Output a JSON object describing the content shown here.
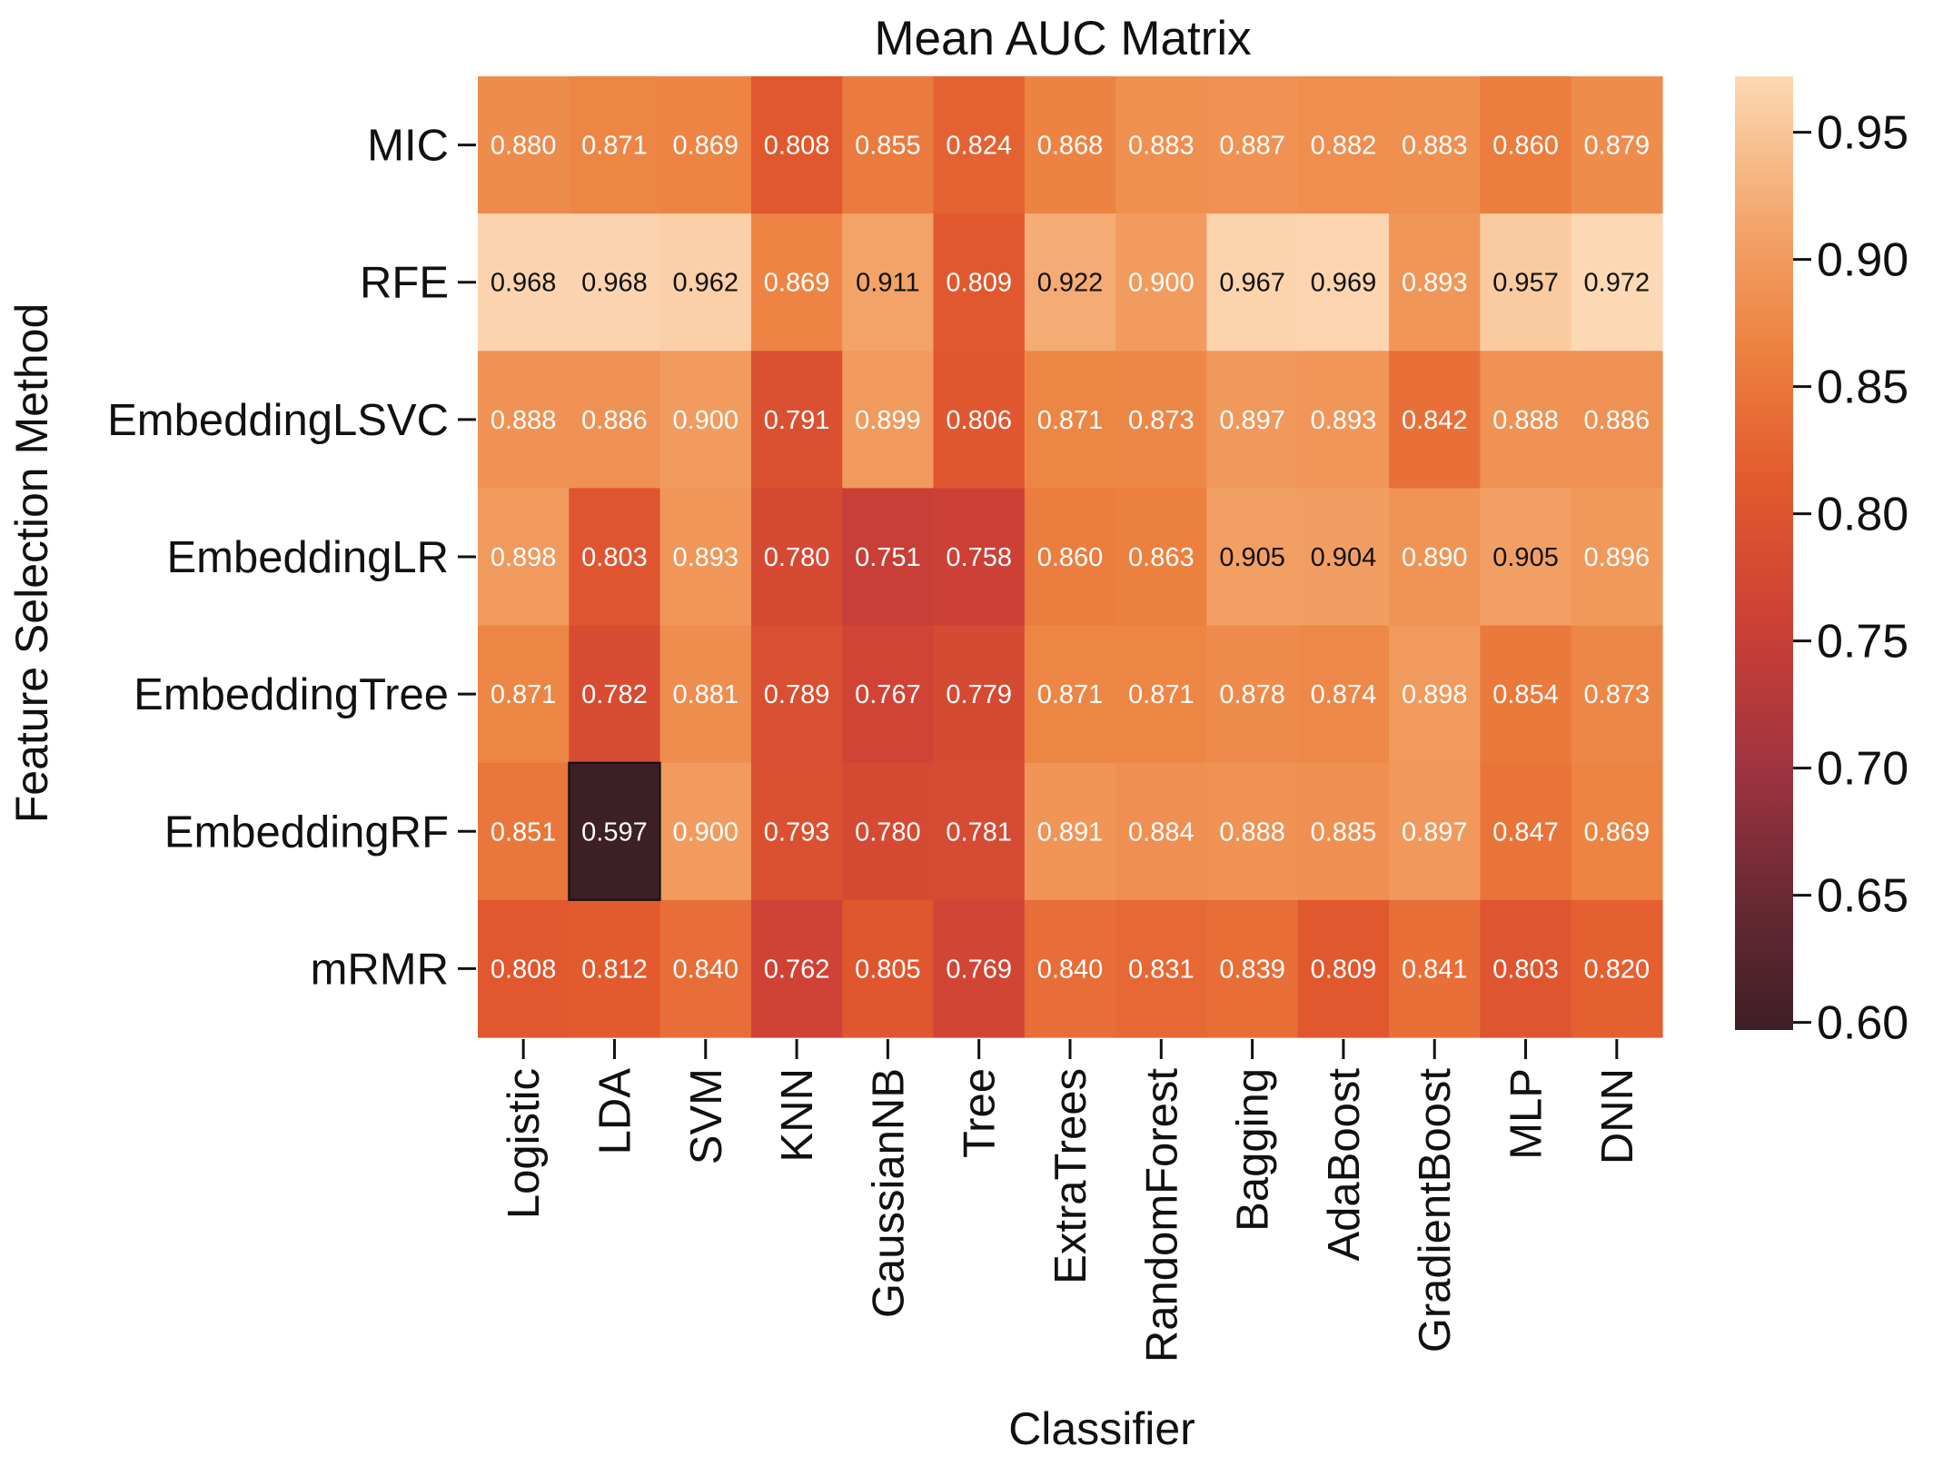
{
  "chart_data": {
    "type": "heatmap",
    "title": "Mean AUC Matrix",
    "xlabel": "Classifier",
    "ylabel": "Feature Selection Method",
    "columns": [
      "Logistic",
      "LDA",
      "SVM",
      "KNN",
      "GaussianNB",
      "Tree",
      "ExtraTrees",
      "RandomForest",
      "Bagging",
      "AdaBoost",
      "GradientBoost",
      "MLP",
      "DNN"
    ],
    "rows": [
      "MIC",
      "RFE",
      "EmbeddingLSVC",
      "EmbeddingLR",
      "EmbeddingTree",
      "EmbeddingRF",
      "mRMR"
    ],
    "values": [
      [
        0.88,
        0.871,
        0.869,
        0.808,
        0.855,
        0.824,
        0.868,
        0.883,
        0.887,
        0.882,
        0.883,
        0.86,
        0.879
      ],
      [
        0.968,
        0.968,
        0.962,
        0.869,
        0.911,
        0.809,
        0.922,
        0.9,
        0.967,
        0.969,
        0.893,
        0.957,
        0.972
      ],
      [
        0.888,
        0.886,
        0.9,
        0.791,
        0.899,
        0.806,
        0.871,
        0.873,
        0.897,
        0.893,
        0.842,
        0.888,
        0.886
      ],
      [
        0.898,
        0.803,
        0.893,
        0.78,
        0.751,
        0.758,
        0.86,
        0.863,
        0.905,
        0.904,
        0.89,
        0.905,
        0.896
      ],
      [
        0.871,
        0.782,
        0.881,
        0.789,
        0.767,
        0.779,
        0.871,
        0.871,
        0.878,
        0.874,
        0.898,
        0.854,
        0.873
      ],
      [
        0.851,
        0.597,
        0.9,
        0.793,
        0.78,
        0.781,
        0.891,
        0.884,
        0.888,
        0.885,
        0.897,
        0.847,
        0.869
      ],
      [
        0.808,
        0.812,
        0.84,
        0.762,
        0.805,
        0.769,
        0.84,
        0.831,
        0.839,
        0.809,
        0.841,
        0.803,
        0.82
      ]
    ],
    "value_labels": [
      [
        "0.880",
        "0.871",
        "0.869",
        "0.808",
        "0.855",
        "0.824",
        "0.868",
        "0.883",
        "0.887",
        "0.882",
        "0.883",
        "0.860",
        "0.879"
      ],
      [
        "0.968",
        "0.968",
        "0.962",
        "0.869",
        "0.911",
        "0.809",
        "0.922",
        "0.900",
        "0.967",
        "0.969",
        "0.893",
        "0.957",
        "0.972"
      ],
      [
        "0.888",
        "0.886",
        "0.900",
        "0.791",
        "0.899",
        "0.806",
        "0.871",
        "0.873",
        "0.897",
        "0.893",
        "0.842",
        "0.888",
        "0.886"
      ],
      [
        "0.898",
        "0.803",
        "0.893",
        "0.780",
        "0.751",
        "0.758",
        "0.860",
        "0.863",
        "0.905",
        "0.904",
        "0.890",
        "0.905",
        "0.896"
      ],
      [
        "0.871",
        "0.782",
        "0.881",
        "0.789",
        "0.767",
        "0.779",
        "0.871",
        "0.871",
        "0.878",
        "0.874",
        "0.898",
        "0.854",
        "0.873"
      ],
      [
        "0.851",
        "0.597",
        "0.900",
        "0.793",
        "0.780",
        "0.781",
        "0.891",
        "0.884",
        "0.888",
        "0.885",
        "0.897",
        "0.847",
        "0.869"
      ],
      [
        "0.808",
        "0.812",
        "0.840",
        "0.762",
        "0.805",
        "0.769",
        "0.840",
        "0.831",
        "0.839",
        "0.809",
        "0.841",
        "0.803",
        "0.820"
      ]
    ],
    "colorbar": {
      "range": [
        0.597,
        0.972
      ],
      "ticks": [
        0.6,
        0.65,
        0.7,
        0.75,
        0.8,
        0.85,
        0.9,
        0.95
      ],
      "tick_labels": [
        "0.60",
        "0.65",
        "0.70",
        "0.75",
        "0.80",
        "0.85",
        "0.90",
        "0.95"
      ],
      "colormap": "dark red to orange to light peach",
      "colors": [
        "#3d1f26",
        "#6b2a35",
        "#a33540",
        "#cd4036",
        "#e2592e",
        "#ec8140",
        "#f4a96f",
        "#fcd8b4"
      ],
      "placement": "right"
    },
    "grid": false
  }
}
